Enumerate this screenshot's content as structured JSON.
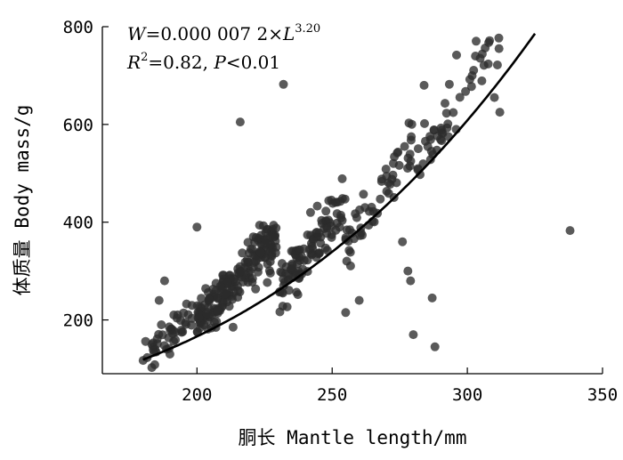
{
  "chart_data": {
    "type": "scatter",
    "xlabel": "胴长 Mantle length/mm",
    "ylabel": "体质量 Body mass/g",
    "xlim": [
      165,
      350
    ],
    "ylim": [
      90,
      800
    ],
    "xticks": [
      "200",
      "250",
      "300",
      "350"
    ],
    "yticks": [
      "200",
      "400",
      "600",
      "800"
    ],
    "annotations": {
      "equation": {
        "lhs": "W",
        "eq": "=",
        "coef": "0.000 007 2",
        "times": "×",
        "var": "L",
        "exp": "3.20"
      },
      "stats": {
        "r": "R",
        "r_sup": "2",
        "r_value": "=0.82, ",
        "p": "P",
        "p_value": "<0.01"
      }
    },
    "fit": {
      "a": 7.2e-06,
      "b": 3.2,
      "x_range": [
        180,
        325
      ]
    },
    "outliers": [
      [
        216,
        605
      ],
      [
        232,
        682
      ],
      [
        200,
        390
      ],
      [
        338,
        383
      ],
      [
        280,
        170
      ],
      [
        287,
        245
      ],
      [
        288,
        145
      ],
      [
        279,
        280
      ],
      [
        278,
        300
      ],
      [
        276,
        360
      ],
      [
        303,
        740
      ],
      [
        312,
        625
      ],
      [
        310,
        655
      ],
      [
        284,
        680
      ],
      [
        296,
        742
      ],
      [
        260,
        240
      ],
      [
        255,
        215
      ],
      [
        188,
        280
      ],
      [
        186,
        240
      ],
      [
        190,
        130
      ]
    ],
    "cluster_bands": [
      {
        "x_range": [
          180,
          200
        ],
        "slope": 5.2,
        "x0": 180,
        "y0": 120,
        "spread": 32,
        "count": 45
      },
      {
        "x_range": [
          200,
          230
        ],
        "slope": 5.8,
        "x0": 200,
        "y0": 200,
        "spread": 48,
        "count": 210
      },
      {
        "x_range": [
          230,
          255
        ],
        "slope": 6.8,
        "x0": 230,
        "y0": 265,
        "spread": 46,
        "count": 110
      },
      {
        "x_range": [
          255,
          280
        ],
        "slope": 8.2,
        "x0": 255,
        "y0": 350,
        "spread": 52,
        "count": 55
      },
      {
        "x_range": [
          280,
          312
        ],
        "slope": 8.8,
        "x0": 280,
        "y0": 500,
        "spread": 58,
        "count": 50
      }
    ],
    "grid": false,
    "legend": "none"
  }
}
